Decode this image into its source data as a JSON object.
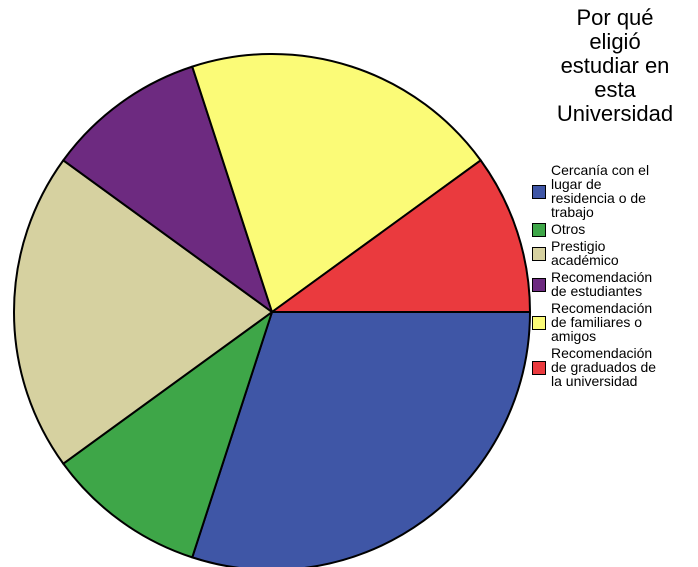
{
  "chart_data": {
    "type": "pie",
    "title": "Por qué\neligió\nestudiar en\nesta\nUniversidad",
    "start_angle_deg": 90,
    "direction": "clockwise",
    "legend_position": "right",
    "slices": [
      {
        "label": "Cercanía con el\nlugar de\nresidencia o de\ntrabajo",
        "value": 30,
        "color": "#3f56a6"
      },
      {
        "label": "Otros",
        "value": 10,
        "color": "#3ea648"
      },
      {
        "label": "Prestigio\nacadémico",
        "value": 20,
        "color": "#d6d1a0"
      },
      {
        "label": "Recomendación\nde estudiantes",
        "value": 10,
        "color": "#6d2a80"
      },
      {
        "label": "Recomendación\nde familiares o\namigos",
        "value": 20,
        "color": "#fbfb77"
      },
      {
        "label": "Recomendación\nde graduados de\nla universidad",
        "value": 10,
        "color": "#ea3a3e"
      }
    ]
  }
}
